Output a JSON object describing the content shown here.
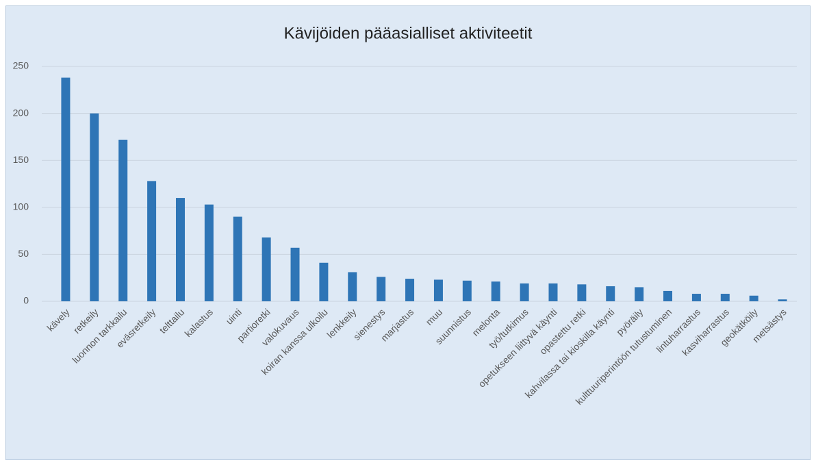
{
  "chart_data": {
    "type": "bar",
    "title": "Kävijöiden pääasialliset aktiviteetit",
    "categories": [
      "kävely",
      "retkeily",
      "luonnon tarkkailu",
      "eväsretkeily",
      "telttailu",
      "kalastus",
      "uinti",
      "partioretki",
      "valokuvaus",
      "koiran kanssa ulkoilu",
      "lenkkeily",
      "sienestys",
      "marjastus",
      "muu",
      "suunnistus",
      "melonta",
      "työ/tutkimus",
      "opetukseen liittyvä käynti",
      "opastettu retki",
      "kahvilassa tai kioskilla käynti",
      "pyöräily",
      "kulttuuriperintöön tutustuminen",
      "lintuharrastus",
      "kasviharrastus",
      "geokätköily",
      "metsästys"
    ],
    "values": [
      238,
      200,
      172,
      128,
      110,
      103,
      90,
      68,
      57,
      41,
      31,
      26,
      24,
      23,
      22,
      21,
      19,
      19,
      18,
      16,
      15,
      11,
      8,
      8,
      6,
      2
    ],
    "color": "#2e75b6",
    "ylim": [
      0,
      250
    ],
    "yticks": [
      0,
      50,
      100,
      150,
      200,
      250
    ],
    "grid": true
  }
}
